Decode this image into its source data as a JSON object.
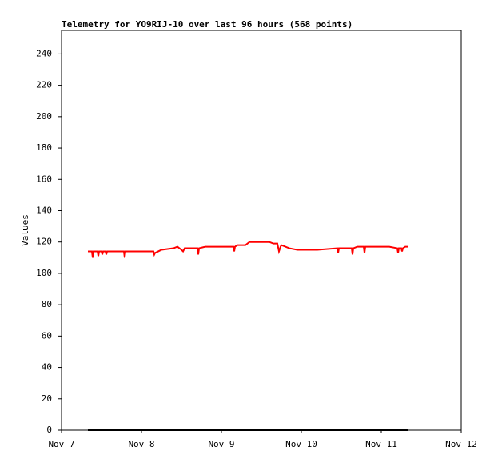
{
  "chart_data": {
    "type": "line",
    "title": "Telemetry for YO9RIJ-10 over last 96 hours (568 points)",
    "ylabel": "Values",
    "xlim": [
      7,
      12
    ],
    "xticks": [
      {
        "value": 7,
        "label": "Nov 7"
      },
      {
        "value": 8,
        "label": "Nov 8"
      },
      {
        "value": 9,
        "label": "Nov 9"
      },
      {
        "value": 10,
        "label": "Nov 10"
      },
      {
        "value": 11,
        "label": "Nov 11"
      },
      {
        "value": 12,
        "label": "Nov 12"
      }
    ],
    "ylim": [
      0,
      255
    ],
    "yticks": [
      0,
      20,
      40,
      60,
      80,
      100,
      120,
      140,
      160,
      180,
      200,
      220,
      240
    ],
    "series": [
      {
        "color": "#ff0000",
        "x": [
          7.33,
          7.38,
          7.39,
          7.4,
          7.45,
          7.46,
          7.47,
          7.5,
          7.51,
          7.52,
          7.55,
          7.56,
          7.57,
          7.78,
          7.79,
          7.8,
          8.15,
          8.16,
          8.17,
          8.25,
          8.4,
          8.45,
          8.5,
          8.52,
          8.53,
          8.54,
          8.65,
          8.7,
          8.71,
          8.72,
          8.8,
          9.15,
          9.16,
          9.17,
          9.2,
          9.3,
          9.35,
          9.6,
          9.65,
          9.7,
          9.72,
          9.74,
          9.75,
          9.85,
          9.95,
          10.2,
          10.45,
          10.46,
          10.47,
          10.6,
          10.63,
          10.64,
          10.65,
          10.7,
          10.78,
          10.79,
          10.8,
          10.9,
          11.1,
          11.2,
          11.21,
          11.22,
          11.25,
          11.26,
          11.27,
          11.3,
          11.34
        ],
        "values": [
          114,
          114,
          110,
          114,
          114,
          111,
          114,
          114,
          112,
          114,
          114,
          112,
          114,
          114,
          110,
          114,
          114,
          112,
          113,
          115,
          116,
          117,
          115,
          114,
          115,
          116,
          116,
          116,
          112,
          116,
          117,
          117,
          114,
          117,
          118,
          118,
          120,
          120,
          119,
          119,
          114,
          117,
          118,
          116,
          115,
          115,
          116,
          113,
          116,
          116,
          116,
          112,
          116,
          117,
          117,
          113,
          117,
          117,
          117,
          116,
          113,
          116,
          116,
          114,
          116,
          117,
          117
        ]
      },
      {
        "color": "#000000",
        "x": [
          7.33,
          11.34
        ],
        "values": [
          0,
          0
        ]
      }
    ]
  }
}
